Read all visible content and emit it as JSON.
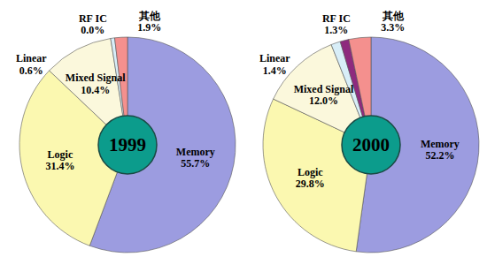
{
  "chart_data": [
    {
      "type": "pie",
      "title": "1999",
      "categories": [
        "Memory",
        "Logic",
        "Mixed Signal",
        "Linear",
        "RF IC",
        "其他"
      ],
      "values": [
        55.7,
        31.4,
        10.4,
        0.6,
        0.0,
        1.9
      ],
      "value_labels": [
        "55.7%",
        "31.4%",
        "10.4%",
        "0.6%",
        "0.0%",
        "1.9%"
      ],
      "colors": [
        "#9c9ce0",
        "#fbf8b0",
        "#fbf8dc",
        "#d8eef8",
        "#8e2a7e",
        "#f4908e"
      ],
      "data_labels": true
    },
    {
      "type": "pie",
      "title": "2000",
      "categories": [
        "Memory",
        "Logic",
        "Mixed Signal",
        "Linear",
        "RF IC",
        "其他"
      ],
      "values": [
        52.2,
        29.8,
        12.0,
        1.4,
        1.3,
        3.3
      ],
      "value_labels": [
        "52.2%",
        "29.8%",
        "12.0%",
        "1.4%",
        "1.3%",
        "3.3%"
      ],
      "colors": [
        "#9c9ce0",
        "#fbf8b0",
        "#fbf8dc",
        "#d8eef8",
        "#8e2a7e",
        "#f4908e"
      ],
      "data_labels": true
    }
  ]
}
